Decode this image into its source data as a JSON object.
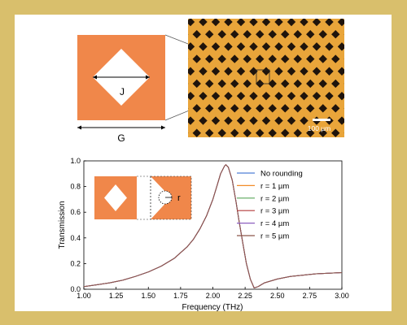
{
  "figure": {
    "border_color": "#d9bf6c",
    "unit_cell": {
      "label_J": "J",
      "label_G": "G",
      "color": "#f0874a"
    },
    "micrograph": {
      "scale_bar_label": "100 µm",
      "background_color": "#e9a53a",
      "hole_color": "#1f140c"
    },
    "inset": {
      "label_r": "r"
    }
  },
  "chart_data": {
    "type": "line",
    "xlabel": "Frequency (THz)",
    "ylabel": "Transmission",
    "xlim": [
      1.0,
      3.0
    ],
    "ylim": [
      0.0,
      1.0
    ],
    "xticks": [
      "1.00",
      "1.25",
      "1.50",
      "1.75",
      "2.00",
      "2.25",
      "2.50",
      "2.75",
      "3.00"
    ],
    "yticks": [
      "0.0",
      "0.2",
      "0.4",
      "0.6",
      "0.8",
      "1.0"
    ],
    "legend_position": "top-right",
    "x": [
      1.0,
      1.1,
      1.2,
      1.3,
      1.4,
      1.5,
      1.6,
      1.7,
      1.8,
      1.85,
      1.9,
      1.95,
      2.0,
      2.03,
      2.06,
      2.09,
      2.1,
      2.12,
      2.15,
      2.18,
      2.2,
      2.23,
      2.26,
      2.29,
      2.32,
      2.35,
      2.4,
      2.5,
      2.6,
      2.7,
      2.8,
      2.9,
      3.0
    ],
    "series": [
      {
        "name": "No rounding",
        "color": "#4f7fd6",
        "values": [
          0.02,
          0.035,
          0.05,
          0.07,
          0.1,
          0.135,
          0.18,
          0.24,
          0.33,
          0.39,
          0.47,
          0.57,
          0.7,
          0.8,
          0.9,
          0.96,
          0.97,
          0.95,
          0.85,
          0.68,
          0.55,
          0.37,
          0.2,
          0.08,
          0.01,
          0.02,
          0.05,
          0.08,
          0.1,
          0.11,
          0.12,
          0.125,
          0.13
        ]
      },
      {
        "name": "r = 1 µm",
        "color": "#f28c28",
        "values": [
          0.02,
          0.035,
          0.05,
          0.07,
          0.1,
          0.135,
          0.18,
          0.24,
          0.33,
          0.39,
          0.47,
          0.57,
          0.7,
          0.8,
          0.9,
          0.96,
          0.97,
          0.95,
          0.85,
          0.68,
          0.55,
          0.37,
          0.2,
          0.08,
          0.01,
          0.02,
          0.05,
          0.08,
          0.1,
          0.11,
          0.12,
          0.125,
          0.13
        ]
      },
      {
        "name": "r = 2 µm",
        "color": "#5aa65a",
        "values": [
          0.02,
          0.035,
          0.05,
          0.07,
          0.1,
          0.135,
          0.18,
          0.24,
          0.33,
          0.39,
          0.47,
          0.57,
          0.7,
          0.8,
          0.9,
          0.96,
          0.97,
          0.95,
          0.85,
          0.68,
          0.55,
          0.37,
          0.2,
          0.08,
          0.01,
          0.02,
          0.05,
          0.08,
          0.1,
          0.11,
          0.12,
          0.125,
          0.13
        ]
      },
      {
        "name": "r = 3 µm",
        "color": "#b33a3a",
        "values": [
          0.02,
          0.035,
          0.05,
          0.07,
          0.1,
          0.135,
          0.18,
          0.24,
          0.33,
          0.39,
          0.47,
          0.57,
          0.7,
          0.8,
          0.9,
          0.96,
          0.97,
          0.95,
          0.85,
          0.68,
          0.55,
          0.37,
          0.2,
          0.08,
          0.01,
          0.02,
          0.05,
          0.08,
          0.1,
          0.11,
          0.12,
          0.125,
          0.13
        ]
      },
      {
        "name": "r = 4 µm",
        "color": "#8c5fbf",
        "values": [
          0.02,
          0.035,
          0.05,
          0.07,
          0.1,
          0.135,
          0.18,
          0.24,
          0.33,
          0.39,
          0.47,
          0.57,
          0.7,
          0.8,
          0.9,
          0.96,
          0.97,
          0.95,
          0.85,
          0.68,
          0.55,
          0.37,
          0.2,
          0.08,
          0.01,
          0.02,
          0.05,
          0.08,
          0.1,
          0.11,
          0.12,
          0.125,
          0.13
        ]
      },
      {
        "name": "r = 5 µm",
        "color": "#8c564b",
        "values": [
          0.02,
          0.035,
          0.05,
          0.07,
          0.1,
          0.135,
          0.18,
          0.24,
          0.33,
          0.39,
          0.47,
          0.57,
          0.7,
          0.8,
          0.9,
          0.96,
          0.97,
          0.95,
          0.85,
          0.68,
          0.55,
          0.37,
          0.2,
          0.08,
          0.01,
          0.02,
          0.05,
          0.08,
          0.1,
          0.11,
          0.12,
          0.125,
          0.13
        ]
      }
    ]
  }
}
